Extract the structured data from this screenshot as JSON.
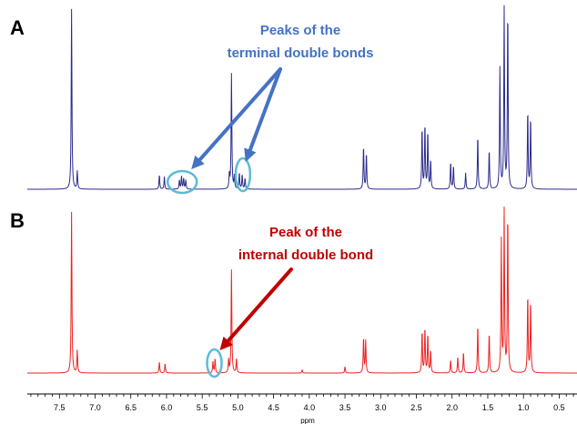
{
  "panels": [
    "A",
    "B"
  ],
  "annotations": {
    "a_line1": "Peaks of the",
    "a_line2": "terminal double bonds",
    "b_line1": "Peak of the",
    "b_line2": "internal double bond"
  },
  "colors": {
    "spectrum_a": "#2b2b8c",
    "spectrum_b": "#ee2222",
    "annotation_a": "#4472c4",
    "annotation_b": "#c00000",
    "highlight_ellipse": "#5bbcd6"
  },
  "chart_data": {
    "type": "line",
    "xlabel": "ppm",
    "xlim": [
      7.95,
      0.25
    ],
    "x_reversed": true,
    "ticks": [
      "7.5",
      "7.0",
      "6.5",
      "6.0",
      "5.5",
      "5.0",
      "4.5",
      "4.0",
      "3.5",
      "3.0",
      "2.5",
      "2.0",
      "1.5",
      "1.0",
      "0.5"
    ],
    "highlighted_regions_ppm": {
      "A": [
        5.78,
        4.93
      ],
      "B": [
        5.33
      ]
    },
    "series": [
      {
        "panel": "A",
        "peaks": [
          {
            "ppm": 7.33,
            "h": 1.0
          },
          {
            "ppm": 7.25,
            "h": 0.1
          },
          {
            "ppm": 6.1,
            "h": 0.08
          },
          {
            "ppm": 6.03,
            "h": 0.07
          },
          {
            "ppm": 5.82,
            "h": 0.05
          },
          {
            "ppm": 5.79,
            "h": 0.07
          },
          {
            "ppm": 5.76,
            "h": 0.06
          },
          {
            "ppm": 5.73,
            "h": 0.05
          },
          {
            "ppm": 5.12,
            "h": 0.08
          },
          {
            "ppm": 5.09,
            "h": 0.64
          },
          {
            "ppm": 5.05,
            "h": 0.07
          },
          {
            "ppm": 4.98,
            "h": 0.09
          },
          {
            "ppm": 4.94,
            "h": 0.08
          },
          {
            "ppm": 4.9,
            "h": 0.06
          },
          {
            "ppm": 3.24,
            "h": 0.24
          },
          {
            "ppm": 3.2,
            "h": 0.2
          },
          {
            "ppm": 2.42,
            "h": 0.34
          },
          {
            "ppm": 2.38,
            "h": 0.36
          },
          {
            "ppm": 2.34,
            "h": 0.32
          },
          {
            "ppm": 2.3,
            "h": 0.16
          },
          {
            "ppm": 2.02,
            "h": 0.15
          },
          {
            "ppm": 1.98,
            "h": 0.13
          },
          {
            "ppm": 1.81,
            "h": 0.09
          },
          {
            "ppm": 1.64,
            "h": 0.3
          },
          {
            "ppm": 1.48,
            "h": 0.22
          },
          {
            "ppm": 1.33,
            "h": 0.67
          },
          {
            "ppm": 1.27,
            "h": 1.0
          },
          {
            "ppm": 1.22,
            "h": 1.0
          },
          {
            "ppm": 0.94,
            "h": 0.44
          },
          {
            "ppm": 0.9,
            "h": 0.4
          }
        ]
      },
      {
        "panel": "B",
        "peaks": [
          {
            "ppm": 7.33,
            "h": 1.0
          },
          {
            "ppm": 7.25,
            "h": 0.14
          },
          {
            "ppm": 6.1,
            "h": 0.07
          },
          {
            "ppm": 6.02,
            "h": 0.06
          },
          {
            "ppm": 5.35,
            "h": 0.07
          },
          {
            "ppm": 5.32,
            "h": 0.09
          },
          {
            "ppm": 5.13,
            "h": 0.08
          },
          {
            "ppm": 5.09,
            "h": 0.64
          },
          {
            "ppm": 5.02,
            "h": 0.09
          },
          {
            "ppm": 4.1,
            "h": 0.02
          },
          {
            "ppm": 3.5,
            "h": 0.04
          },
          {
            "ppm": 3.24,
            "h": 0.22
          },
          {
            "ppm": 3.21,
            "h": 0.2
          },
          {
            "ppm": 2.42,
            "h": 0.26
          },
          {
            "ppm": 2.38,
            "h": 0.28
          },
          {
            "ppm": 2.34,
            "h": 0.24
          },
          {
            "ppm": 2.3,
            "h": 0.14
          },
          {
            "ppm": 2.02,
            "h": 0.08
          },
          {
            "ppm": 1.92,
            "h": 0.1
          },
          {
            "ppm": 1.84,
            "h": 0.13
          },
          {
            "ppm": 1.64,
            "h": 0.3
          },
          {
            "ppm": 1.48,
            "h": 0.25
          },
          {
            "ppm": 1.31,
            "h": 0.82
          },
          {
            "ppm": 1.27,
            "h": 1.0
          },
          {
            "ppm": 1.22,
            "h": 1.0
          },
          {
            "ppm": 0.94,
            "h": 0.49
          },
          {
            "ppm": 0.9,
            "h": 0.45
          }
        ]
      }
    ]
  }
}
